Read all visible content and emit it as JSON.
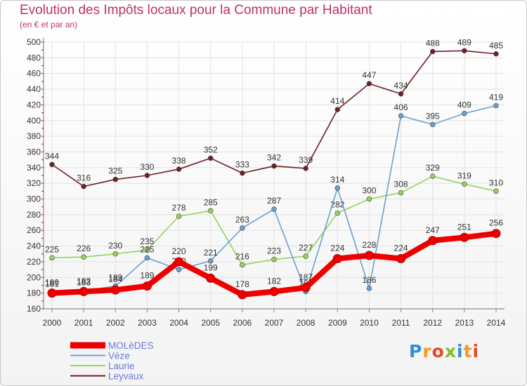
{
  "title": "Evolution des Impôts locaux pour la Commune par Habitant",
  "subtitle": "(en € et par an)",
  "logo": "Proxiti",
  "chart_data": {
    "type": "line",
    "x": [
      2000,
      2001,
      2002,
      2003,
      2004,
      2005,
      2006,
      2007,
      2008,
      2009,
      2010,
      2011,
      2012,
      2013,
      2014
    ],
    "ylim": [
      160,
      500
    ],
    "yticks": [
      160,
      180,
      200,
      220,
      240,
      260,
      280,
      300,
      320,
      340,
      360,
      380,
      400,
      420,
      440,
      460,
      480,
      500
    ],
    "grid": true,
    "legend_position": "bottom-left",
    "series": [
      {
        "name": "Leyvaux",
        "color": "#6e1f24",
        "values": [
          344,
          316,
          325,
          330,
          338,
          352,
          333,
          342,
          339,
          414,
          447,
          434,
          488,
          489,
          485
        ]
      },
      {
        "name": "Laurie",
        "color": "#94d35c",
        "values": [
          225,
          226,
          230,
          235,
          278,
          285,
          216,
          223,
          227,
          282,
          300,
          308,
          329,
          319,
          310
        ]
      },
      {
        "name": "Vèze",
        "color": "#6aa0d2",
        "values": [
          181,
          183,
          189,
          225,
          210,
          221,
          263,
          287,
          182,
          314,
          186,
          406,
          395,
          409,
          419
        ]
      },
      {
        "name": "MOLèDES",
        "color": "#ee0000",
        "values": [
          180,
          182,
          184,
          189,
          220,
          199,
          178,
          182,
          187,
          224,
          228,
          224,
          247,
          251,
          256
        ]
      }
    ],
    "data_labels": {
      "Leyvaux": [
        "344",
        "316",
        "325",
        "330",
        "338",
        "352",
        "333",
        "342",
        "339",
        "414",
        "447",
        "434",
        "488",
        "489",
        "485"
      ],
      "Laurie": [
        "225",
        "226",
        "230",
        "235",
        "278",
        "285",
        "216",
        "223",
        "227",
        "282",
        "300",
        "308",
        "329",
        "319",
        "310"
      ],
      "Vèze": [
        "181",
        "183",
        "189",
        "225",
        "210",
        "221",
        "263",
        "287",
        "182",
        "314",
        "186",
        "406",
        "395",
        "409",
        "419"
      ],
      "MOLèDES": [
        "180",
        "182",
        "184",
        "189",
        "220",
        "199",
        "178",
        "182",
        "187",
        "224",
        "228",
        "224",
        "247",
        "251",
        "256"
      ]
    }
  }
}
